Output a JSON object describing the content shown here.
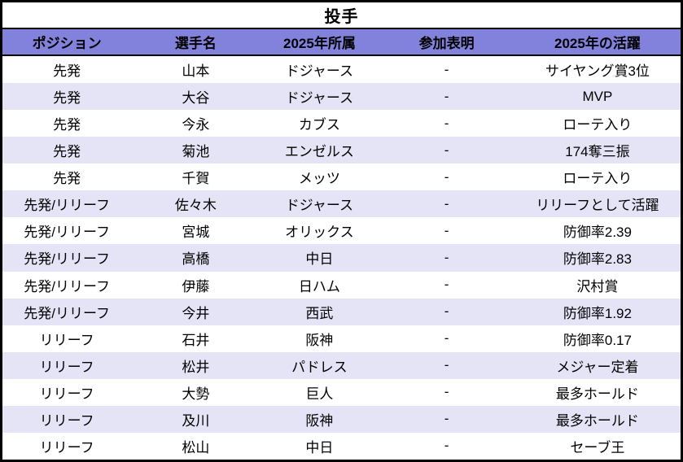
{
  "chart_data": {
    "type": "table",
    "title": "投手",
    "columns": [
      "ポジション",
      "選手名",
      "2025年所属",
      "参加表明",
      "2025年の活躍"
    ],
    "rows": [
      [
        "先発",
        "山本",
        "ドジャース",
        "-",
        "サイヤング賞3位"
      ],
      [
        "先発",
        "大谷",
        "ドジャース",
        "-",
        "MVP"
      ],
      [
        "先発",
        "今永",
        "カブス",
        "-",
        "ローテ入り"
      ],
      [
        "先発",
        "菊池",
        "エンゼルス",
        "-",
        "174奪三振"
      ],
      [
        "先発",
        "千賀",
        "メッツ",
        "-",
        "ローテ入り"
      ],
      [
        "先発/リリーフ",
        "佐々木",
        "ドジャース",
        "-",
        "リリーフとして活躍"
      ],
      [
        "先発/リリーフ",
        "宮城",
        "オリックス",
        "-",
        "防御率2.39"
      ],
      [
        "先発/リリーフ",
        "高橋",
        "中日",
        "-",
        "防御率2.83"
      ],
      [
        "先発/リリーフ",
        "伊藤",
        "日ハム",
        "-",
        "沢村賞"
      ],
      [
        "先発/リリーフ",
        "今井",
        "西武",
        "-",
        "防御率1.92"
      ],
      [
        "リリーフ",
        "石井",
        "阪神",
        "-",
        "防御率0.17"
      ],
      [
        "リリーフ",
        "松井",
        "パドレス",
        "-",
        "メジャー定着"
      ],
      [
        "リリーフ",
        "大勢",
        "巨人",
        "-",
        "最多ホールド"
      ],
      [
        "リリーフ",
        "及川",
        "阪神",
        "-",
        "最多ホールド"
      ],
      [
        "リリーフ",
        "松山",
        "中日",
        "-",
        "セーブ王"
      ]
    ],
    "layout": {
      "grid": "off",
      "striping": "alternating-rows"
    }
  },
  "colors": {
    "header_bg": "#8282DC",
    "row_bg": "#FFFFFF",
    "row_alt_bg": "#E4E4F6",
    "border": "#000000",
    "text": "#000000"
  }
}
